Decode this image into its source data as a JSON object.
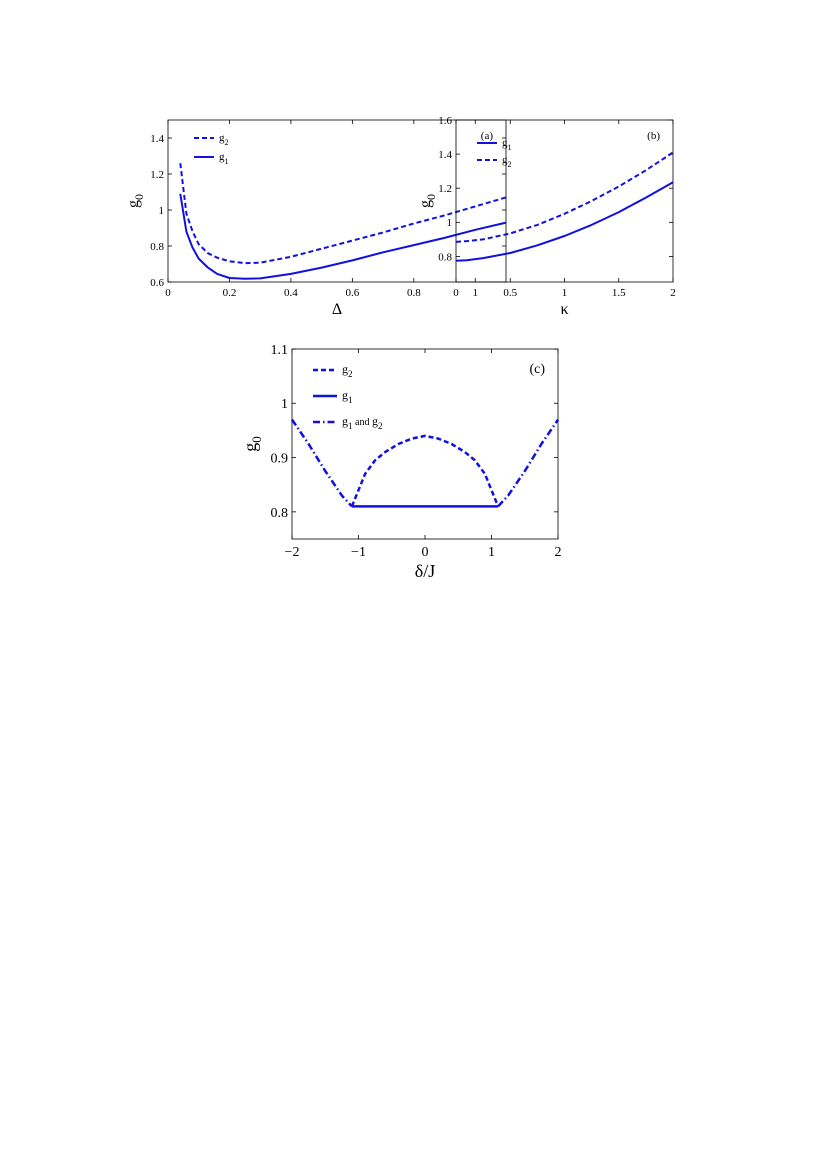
{
  "chart_data": [
    {
      "panel": "(a)",
      "type": "line",
      "xlabel": "Δ",
      "ylabel": "g",
      "ylabel_sub": "0",
      "xlim": [
        0,
        1.1
      ],
      "ylim": [
        0.6,
        1.5
      ],
      "xticks": [
        0,
        0.2,
        0.4,
        0.6,
        0.8,
        1
      ],
      "xtick_labels": [
        "0",
        "0.2",
        "0.4",
        "0.6",
        "0.8",
        "1"
      ],
      "yticks": [
        0.6,
        0.8,
        1,
        1.2,
        1.4
      ],
      "ytick_labels": [
        "0.6",
        "0.8",
        "1",
        "1.2",
        "1.4"
      ],
      "legend_position": "top-left",
      "series": [
        {
          "name": "g",
          "sub": "2",
          "style": "dashed",
          "x": [
            0.04,
            0.06,
            0.08,
            0.1,
            0.13,
            0.16,
            0.2,
            0.25,
            0.3,
            0.4,
            0.5,
            0.6,
            0.7,
            0.8,
            0.9,
            1.0,
            1.1
          ],
          "y": [
            1.26,
            0.98,
            0.88,
            0.81,
            0.76,
            0.735,
            0.715,
            0.705,
            0.707,
            0.74,
            0.785,
            0.83,
            0.875,
            0.925,
            0.97,
            1.02,
            1.07
          ]
        },
        {
          "name": "g",
          "sub": "1",
          "style": "solid",
          "x": [
            0.04,
            0.06,
            0.08,
            0.1,
            0.13,
            0.16,
            0.2,
            0.25,
            0.3,
            0.4,
            0.5,
            0.6,
            0.7,
            0.8,
            0.9,
            1.0,
            1.1
          ],
          "y": [
            1.09,
            0.88,
            0.79,
            0.73,
            0.68,
            0.645,
            0.622,
            0.618,
            0.62,
            0.645,
            0.68,
            0.72,
            0.765,
            0.805,
            0.845,
            0.89,
            0.93
          ]
        }
      ]
    },
    {
      "panel": "(b)",
      "type": "line",
      "xlabel": "κ",
      "ylabel": "g",
      "ylabel_sub": "0",
      "xlim": [
        0,
        2
      ],
      "ylim": [
        0.65,
        1.6
      ],
      "xticks": [
        0,
        0.5,
        1,
        1.5,
        2
      ],
      "xtick_labels": [
        "0",
        "0.5",
        "1",
        "1.5",
        "2"
      ],
      "yticks": [
        0.8,
        1,
        1.2,
        1.4,
        1.6
      ],
      "ytick_labels": [
        "0.8",
        "1",
        "1.2",
        "1.4",
        "1.6"
      ],
      "legend_position": "top-left",
      "series": [
        {
          "name": "g",
          "sub": "1",
          "style": "solid",
          "x": [
            0,
            0.1,
            0.25,
            0.5,
            0.75,
            1.0,
            1.25,
            1.5,
            1.75,
            2.0
          ],
          "y": [
            0.775,
            0.778,
            0.79,
            0.82,
            0.865,
            0.92,
            0.985,
            1.06,
            1.145,
            1.235
          ]
        },
        {
          "name": "g",
          "sub": "2",
          "style": "dashed",
          "x": [
            0,
            0.1,
            0.25,
            0.5,
            0.75,
            1.0,
            1.25,
            1.5,
            1.75,
            2.0
          ],
          "y": [
            0.885,
            0.89,
            0.9,
            0.935,
            0.985,
            1.05,
            1.125,
            1.21,
            1.305,
            1.41
          ]
        }
      ]
    },
    {
      "panel": "(c)",
      "type": "line",
      "xlabel": "δ/J",
      "ylabel": "g",
      "ylabel_sub": "0",
      "xlim": [
        -2,
        2
      ],
      "ylim": [
        0.75,
        1.1
      ],
      "xticks": [
        -2,
        -1,
        0,
        1,
        2
      ],
      "xtick_labels": [
        "−2",
        "−1",
        "0",
        "1",
        "2"
      ],
      "yticks": [
        0.8,
        0.9,
        1,
        1.1
      ],
      "ytick_labels": [
        "0.8",
        "0.9",
        "1",
        "1.1"
      ],
      "legend_position": "top-left",
      "legend_and_text": "and",
      "series": [
        {
          "name": "g",
          "sub": "2",
          "style": "dashed",
          "x": [
            -1.1,
            -0.9,
            -0.75,
            -0.6,
            -0.4,
            -0.2,
            0,
            0.2,
            0.4,
            0.6,
            0.75,
            0.9,
            1.1
          ],
          "y": [
            0.81,
            0.87,
            0.895,
            0.91,
            0.925,
            0.935,
            0.94,
            0.935,
            0.925,
            0.91,
            0.895,
            0.87,
            0.81
          ]
        },
        {
          "name": "g",
          "sub": "1",
          "style": "solid",
          "x": [
            -1.1,
            1.1
          ],
          "y": [
            0.81,
            0.81
          ]
        },
        {
          "name": "g",
          "sub": "1",
          "name2": "g",
          "sub2": "2",
          "style": "dashdot",
          "x": [
            -2,
            -1.75,
            -1.5,
            -1.25,
            -1.1
          ],
          "y": [
            0.97,
            0.925,
            0.875,
            0.83,
            0.81
          ]
        },
        {
          "name": "g",
          "sub": "1",
          "name2": "g",
          "sub2": "2",
          "style": "dashdot",
          "legend": false,
          "x": [
            1.1,
            1.25,
            1.5,
            1.75,
            2
          ],
          "y": [
            0.81,
            0.83,
            0.875,
            0.925,
            0.97
          ]
        }
      ]
    }
  ],
  "colors": {
    "line": "#1010e0",
    "axis": "#000000"
  }
}
